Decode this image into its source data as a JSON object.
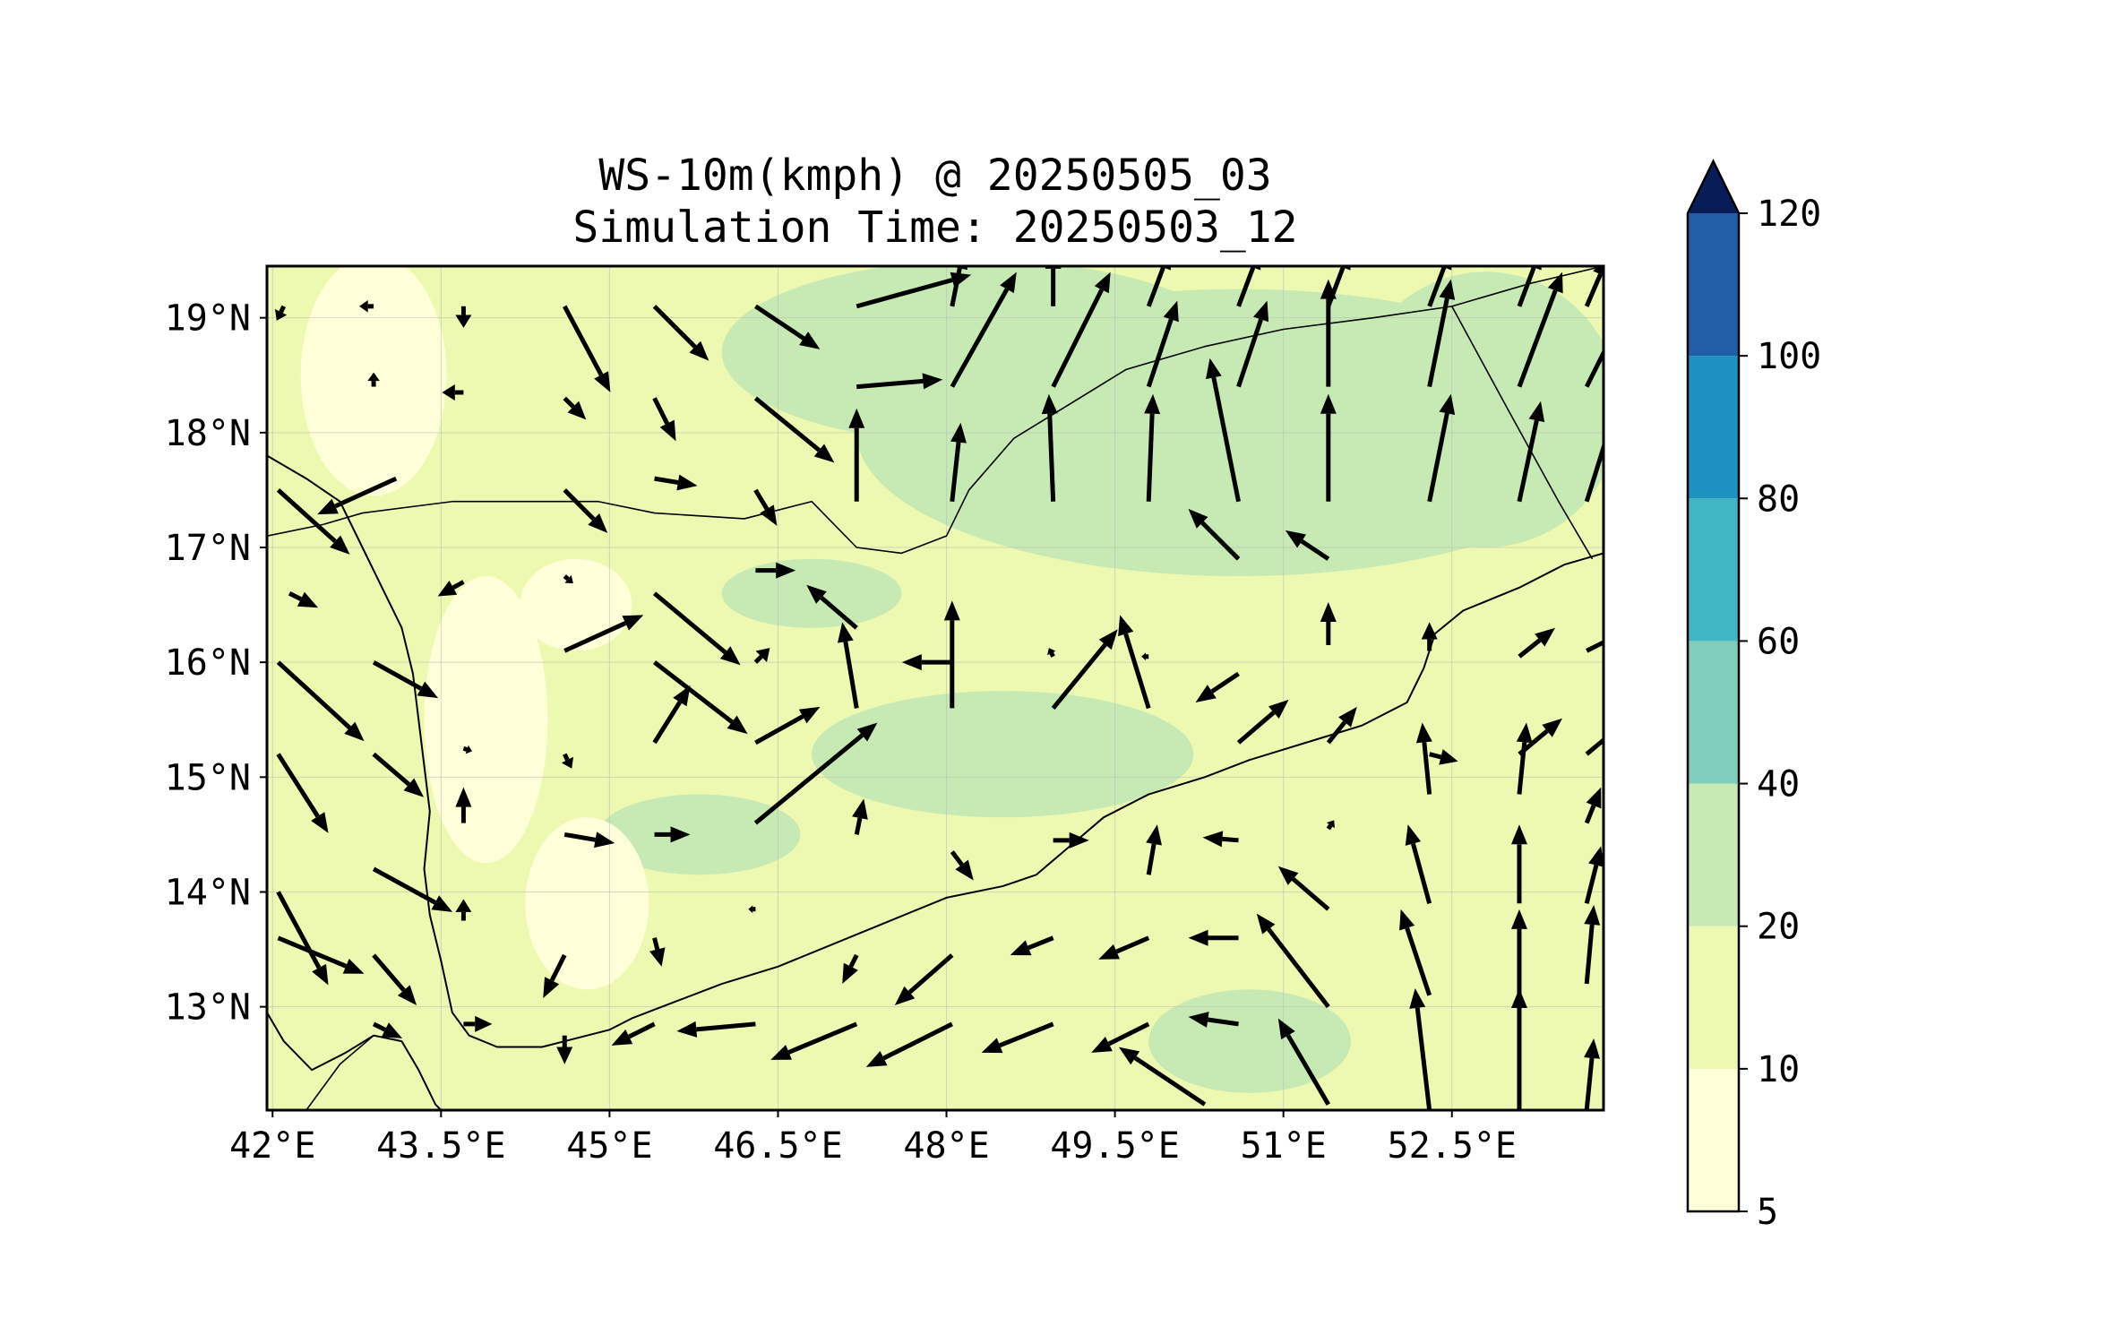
{
  "chart_data": {
    "type": "map",
    "title_line1": "WS-10m(kmph) @ 20250505_03",
    "title_line2": "Simulation Time: 20250503_12",
    "lon_range": [
      41.95,
      53.85
    ],
    "lat_range": [
      12.1,
      19.45
    ],
    "lon_ticks": [
      {
        "value": 42.0,
        "label": "42°E"
      },
      {
        "value": 43.5,
        "label": "43.5°E"
      },
      {
        "value": 45.0,
        "label": "45°E"
      },
      {
        "value": 46.5,
        "label": "46.5°E"
      },
      {
        "value": 48.0,
        "label": "48°E"
      },
      {
        "value": 49.5,
        "label": "49.5°E"
      },
      {
        "value": 51.0,
        "label": "51°E"
      },
      {
        "value": 52.5,
        "label": "52.5°E"
      }
    ],
    "lat_ticks": [
      {
        "value": 19,
        "label": "19°N"
      },
      {
        "value": 18,
        "label": "18°N"
      },
      {
        "value": 17,
        "label": "17°N"
      },
      {
        "value": 16,
        "label": "16°N"
      },
      {
        "value": 15,
        "label": "15°N"
      },
      {
        "value": 14,
        "label": "14°N"
      },
      {
        "value": 13,
        "label": "13°N"
      }
    ],
    "colorbar": {
      "levels": [
        5,
        10,
        20,
        40,
        60,
        80,
        100,
        120
      ],
      "labels": [
        "5",
        "10",
        "20",
        "40",
        "60",
        "80",
        "100",
        "120"
      ],
      "colors": [
        "#ffffd9",
        "#edf8b1",
        "#c7e9b4",
        "#7fcdbb",
        "#41b6c4",
        "#1d91c0",
        "#225ea8",
        "#253494"
      ],
      "extend_color": "#081d58",
      "extend": "max"
    },
    "color_field_blobs": [
      {
        "level": 20,
        "lon": 50.6,
        "lat": 18.0,
        "rx": 3.4,
        "ry": 1.25
      },
      {
        "level": 20,
        "lon": 48.3,
        "lat": 18.7,
        "rx": 2.3,
        "ry": 0.8
      },
      {
        "level": 20,
        "lon": 52.8,
        "lat": 18.2,
        "rx": 1.2,
        "ry": 1.2
      },
      {
        "level": 20,
        "lon": 48.5,
        "lat": 15.2,
        "rx": 1.7,
        "ry": 0.55
      },
      {
        "level": 20,
        "lon": 50.7,
        "lat": 12.7,
        "rx": 0.9,
        "ry": 0.45
      },
      {
        "level": 20,
        "lon": 46.8,
        "lat": 16.6,
        "rx": 0.8,
        "ry": 0.3
      },
      {
        "level": 20,
        "lon": 45.8,
        "lat": 14.5,
        "rx": 0.9,
        "ry": 0.35
      },
      {
        "level": 5,
        "lon": 42.9,
        "lat": 18.5,
        "rx": 0.65,
        "ry": 1.05
      },
      {
        "level": 5,
        "lon": 43.9,
        "lat": 15.5,
        "rx": 0.55,
        "ry": 1.25
      },
      {
        "level": 5,
        "lon": 44.8,
        "lat": 13.9,
        "rx": 0.55,
        "ry": 0.75
      },
      {
        "level": 5,
        "lon": 44.7,
        "lat": 16.5,
        "rx": 0.5,
        "ry": 0.4
      }
    ],
    "wind_vectors": [
      {
        "lon": 42.1,
        "lat": 19.1,
        "u": -0.05,
        "v": -0.1
      },
      {
        "lon": 42.9,
        "lat": 19.1,
        "u": -0.1,
        "v": 0.0
      },
      {
        "lon": 43.7,
        "lat": 19.1,
        "u": 0.0,
        "v": -0.15
      },
      {
        "lon": 44.6,
        "lat": 19.1,
        "u": 0.32,
        "v": -0.6
      },
      {
        "lon": 45.4,
        "lat": 19.1,
        "u": 0.38,
        "v": -0.38
      },
      {
        "lon": 46.3,
        "lat": 19.1,
        "u": 0.45,
        "v": -0.3
      },
      {
        "lon": 47.2,
        "lat": 19.1,
        "u": 0.8,
        "v": 0.22
      },
      {
        "lon": 48.05,
        "lat": 19.1,
        "u": 0.08,
        "v": 0.4
      },
      {
        "lon": 48.95,
        "lat": 19.1,
        "u": 0.0,
        "v": 0.4
      },
      {
        "lon": 49.8,
        "lat": 19.1,
        "u": 0.15,
        "v": 0.4
      },
      {
        "lon": 50.6,
        "lat": 19.1,
        "u": 0.15,
        "v": 0.4
      },
      {
        "lon": 51.4,
        "lat": 19.1,
        "u": 0.15,
        "v": 0.4
      },
      {
        "lon": 52.3,
        "lat": 19.1,
        "u": 0.15,
        "v": 0.4
      },
      {
        "lon": 53.1,
        "lat": 19.1,
        "u": 0.15,
        "v": 0.4
      },
      {
        "lon": 53.7,
        "lat": 19.1,
        "u": 0.15,
        "v": 0.35
      },
      {
        "lon": 42.9,
        "lat": 18.4,
        "u": 0.0,
        "v": 0.1
      },
      {
        "lon": 43.7,
        "lat": 18.35,
        "u": -0.15,
        "v": 0.0
      },
      {
        "lon": 44.6,
        "lat": 18.3,
        "u": 0.15,
        "v": -0.15
      },
      {
        "lon": 45.4,
        "lat": 18.3,
        "u": 0.15,
        "v": -0.3
      },
      {
        "lon": 46.3,
        "lat": 18.3,
        "u": 0.55,
        "v": -0.45
      },
      {
        "lon": 47.2,
        "lat": 18.4,
        "u": 0.6,
        "v": 0.05
      },
      {
        "lon": 48.05,
        "lat": 18.4,
        "u": 0.45,
        "v": 0.8
      },
      {
        "lon": 48.95,
        "lat": 18.4,
        "u": 0.4,
        "v": 0.8
      },
      {
        "lon": 49.8,
        "lat": 18.4,
        "u": 0.2,
        "v": 0.6
      },
      {
        "lon": 50.6,
        "lat": 18.4,
        "u": 0.2,
        "v": 0.6
      },
      {
        "lon": 51.4,
        "lat": 18.4,
        "u": 0.0,
        "v": 0.75
      },
      {
        "lon": 52.3,
        "lat": 18.4,
        "u": 0.15,
        "v": 0.75
      },
      {
        "lon": 53.1,
        "lat": 18.4,
        "u": 0.3,
        "v": 0.8
      },
      {
        "lon": 53.7,
        "lat": 18.4,
        "u": 0.3,
        "v": 0.6
      },
      {
        "lon": 42.05,
        "lat": 17.5,
        "u": 0.5,
        "v": -0.45
      },
      {
        "lon": 43.1,
        "lat": 17.6,
        "u": -0.55,
        "v": -0.25
      },
      {
        "lon": 44.6,
        "lat": 17.5,
        "u": 0.3,
        "v": -0.3
      },
      {
        "lon": 45.4,
        "lat": 17.6,
        "u": 0.3,
        "v": -0.05
      },
      {
        "lon": 46.3,
        "lat": 17.5,
        "u": 0.15,
        "v": -0.25
      },
      {
        "lon": 47.2,
        "lat": 17.4,
        "u": 0.0,
        "v": 0.65
      },
      {
        "lon": 48.05,
        "lat": 17.4,
        "u": 0.06,
        "v": 0.55
      },
      {
        "lon": 48.95,
        "lat": 17.4,
        "u": -0.03,
        "v": 0.75
      },
      {
        "lon": 49.8,
        "lat": 17.4,
        "u": 0.03,
        "v": 0.75
      },
      {
        "lon": 50.6,
        "lat": 17.4,
        "u": -0.2,
        "v": 1.0
      },
      {
        "lon": 51.4,
        "lat": 17.4,
        "u": 0.0,
        "v": 0.75
      },
      {
        "lon": 52.3,
        "lat": 17.4,
        "u": 0.15,
        "v": 0.75
      },
      {
        "lon": 53.1,
        "lat": 17.4,
        "u": 0.15,
        "v": 0.7
      },
      {
        "lon": 53.7,
        "lat": 17.4,
        "u": 0.25,
        "v": 0.8
      },
      {
        "lon": 42.15,
        "lat": 16.6,
        "u": 0.2,
        "v": -0.1
      },
      {
        "lon": 43.7,
        "lat": 16.7,
        "u": -0.18,
        "v": -0.1
      },
      {
        "lon": 44.6,
        "lat": 16.75,
        "u": 0.06,
        "v": -0.05
      },
      {
        "lon": 45.4,
        "lat": 16.6,
        "u": 0.6,
        "v": -0.5
      },
      {
        "lon": 46.3,
        "lat": 16.8,
        "u": 0.28,
        "v": 0.0
      },
      {
        "lon": 50.6,
        "lat": 16.9,
        "u": -0.35,
        "v": 0.35
      },
      {
        "lon": 51.4,
        "lat": 16.9,
        "u": -0.3,
        "v": 0.2
      },
      {
        "lon": 42.05,
        "lat": 16.0,
        "u": 0.6,
        "v": -0.55
      },
      {
        "lon": 42.9,
        "lat": 16.0,
        "u": 0.45,
        "v": -0.25
      },
      {
        "lon": 44.6,
        "lat": 16.1,
        "u": 0.55,
        "v": 0.25
      },
      {
        "lon": 45.4,
        "lat": 16.0,
        "u": 0.65,
        "v": -0.5
      },
      {
        "lon": 46.3,
        "lat": 16.0,
        "u": 0.1,
        "v": 0.1
      },
      {
        "lon": 47.2,
        "lat": 16.3,
        "u": -0.35,
        "v": 0.3
      },
      {
        "lon": 48.05,
        "lat": 16.0,
        "u": -0.35,
        "v": 0.0
      },
      {
        "lon": 48.95,
        "lat": 16.05,
        "u": -0.03,
        "v": 0.06
      },
      {
        "lon": 49.8,
        "lat": 16.05,
        "u": -0.05,
        "v": 0.0
      },
      {
        "lon": 50.6,
        "lat": 15.9,
        "u": -0.3,
        "v": -0.2
      },
      {
        "lon": 51.4,
        "lat": 16.15,
        "u": 0.0,
        "v": 0.3
      },
      {
        "lon": 52.3,
        "lat": 16.1,
        "u": 0.0,
        "v": 0.2
      },
      {
        "lon": 53.1,
        "lat": 16.05,
        "u": 0.25,
        "v": 0.2
      },
      {
        "lon": 53.7,
        "lat": 16.1,
        "u": 0.3,
        "v": 0.15
      },
      {
        "lon": 42.05,
        "lat": 15.2,
        "u": 0.35,
        "v": -0.55
      },
      {
        "lon": 42.9,
        "lat": 15.2,
        "u": 0.35,
        "v": -0.3
      },
      {
        "lon": 43.7,
        "lat": 15.25,
        "u": 0.06,
        "v": -0.02
      },
      {
        "lon": 44.6,
        "lat": 15.2,
        "u": 0.05,
        "v": -0.1
      },
      {
        "lon": 45.4,
        "lat": 15.3,
        "u": 0.25,
        "v": 0.4
      },
      {
        "lon": 46.3,
        "lat": 15.3,
        "u": 0.45,
        "v": 0.25
      },
      {
        "lon": 47.2,
        "lat": 15.6,
        "u": -0.1,
        "v": 0.6
      },
      {
        "lon": 48.05,
        "lat": 15.6,
        "u": 0.0,
        "v": 0.75
      },
      {
        "lon": 48.95,
        "lat": 15.6,
        "u": 0.45,
        "v": 0.55
      },
      {
        "lon": 49.8,
        "lat": 15.6,
        "u": -0.2,
        "v": 0.65
      },
      {
        "lon": 50.6,
        "lat": 15.3,
        "u": 0.35,
        "v": 0.3
      },
      {
        "lon": 51.4,
        "lat": 15.3,
        "u": 0.2,
        "v": 0.25
      },
      {
        "lon": 52.3,
        "lat": 15.2,
        "u": 0.2,
        "v": -0.05
      },
      {
        "lon": 53.1,
        "lat": 15.2,
        "u": 0.3,
        "v": 0.25
      },
      {
        "lon": 53.7,
        "lat": 15.2,
        "u": 0.3,
        "v": 0.25
      },
      {
        "lon": 42.05,
        "lat": 14.0,
        "u": 0.35,
        "v": -0.65
      },
      {
        "lon": 42.05,
        "lat": 13.6,
        "u": 0.6,
        "v": -0.25
      },
      {
        "lon": 42.9,
        "lat": 14.2,
        "u": 0.55,
        "v": -0.3
      },
      {
        "lon": 43.7,
        "lat": 14.6,
        "u": 0.0,
        "v": 0.25
      },
      {
        "lon": 44.6,
        "lat": 14.5,
        "u": 0.35,
        "v": -0.06
      },
      {
        "lon": 45.4,
        "lat": 14.5,
        "u": 0.25,
        "v": 0.0
      },
      {
        "lon": 46.3,
        "lat": 14.6,
        "u": 0.85,
        "v": 0.7
      },
      {
        "lon": 47.2,
        "lat": 14.5,
        "u": 0.05,
        "v": 0.25
      },
      {
        "lon": 48.05,
        "lat": 14.35,
        "u": 0.15,
        "v": -0.2
      },
      {
        "lon": 48.95,
        "lat": 14.45,
        "u": 0.25,
        "v": 0.0
      },
      {
        "lon": 49.8,
        "lat": 14.15,
        "u": 0.06,
        "v": 0.35
      },
      {
        "lon": 50.6,
        "lat": 14.45,
        "u": -0.25,
        "v": 0.02
      },
      {
        "lon": 51.4,
        "lat": 14.55,
        "u": 0.04,
        "v": 0.06
      },
      {
        "lon": 52.3,
        "lat": 14.85,
        "u": -0.05,
        "v": 0.5
      },
      {
        "lon": 53.1,
        "lat": 14.85,
        "u": 0.05,
        "v": 0.5
      },
      {
        "lon": 53.7,
        "lat": 14.6,
        "u": 0.1,
        "v": 0.25
      },
      {
        "lon": 42.9,
        "lat": 13.45,
        "u": 0.3,
        "v": -0.35
      },
      {
        "lon": 43.7,
        "lat": 13.75,
        "u": 0.0,
        "v": 0.15
      },
      {
        "lon": 44.6,
        "lat": 13.45,
        "u": -0.15,
        "v": -0.3
      },
      {
        "lon": 45.4,
        "lat": 13.6,
        "u": 0.05,
        "v": -0.2
      },
      {
        "lon": 46.3,
        "lat": 13.85,
        "u": -0.05,
        "v": 0.0
      },
      {
        "lon": 47.2,
        "lat": 13.45,
        "u": -0.1,
        "v": -0.2
      },
      {
        "lon": 48.05,
        "lat": 13.45,
        "u": -0.4,
        "v": -0.35
      },
      {
        "lon": 48.95,
        "lat": 13.6,
        "u": -0.3,
        "v": -0.12
      },
      {
        "lon": 49.8,
        "lat": 13.6,
        "u": -0.35,
        "v": -0.15
      },
      {
        "lon": 50.6,
        "lat": 13.6,
        "u": -0.35,
        "v": 0.0
      },
      {
        "lon": 51.4,
        "lat": 13.85,
        "u": -0.35,
        "v": 0.3
      },
      {
        "lon": 52.3,
        "lat": 13.9,
        "u": -0.15,
        "v": 0.55
      },
      {
        "lon": 53.1,
        "lat": 13.9,
        "u": 0.0,
        "v": 0.55
      },
      {
        "lon": 53.7,
        "lat": 13.9,
        "u": 0.1,
        "v": 0.4
      },
      {
        "lon": 42.9,
        "lat": 12.85,
        "u": 0.2,
        "v": -0.1
      },
      {
        "lon": 43.7,
        "lat": 12.85,
        "u": 0.2,
        "v": 0.0
      },
      {
        "lon": 44.6,
        "lat": 12.75,
        "u": 0.0,
        "v": -0.2
      },
      {
        "lon": 45.4,
        "lat": 12.85,
        "u": -0.3,
        "v": -0.15
      },
      {
        "lon": 46.3,
        "lat": 12.85,
        "u": -0.55,
        "v": -0.05
      },
      {
        "lon": 47.2,
        "lat": 12.85,
        "u": -0.6,
        "v": -0.25
      },
      {
        "lon": 48.05,
        "lat": 12.85,
        "u": -0.6,
        "v": -0.3
      },
      {
        "lon": 48.95,
        "lat": 12.85,
        "u": -0.5,
        "v": -0.2
      },
      {
        "lon": 49.8,
        "lat": 12.85,
        "u": -0.4,
        "v": -0.2
      },
      {
        "lon": 50.6,
        "lat": 12.85,
        "u": -0.35,
        "v": 0.05
      },
      {
        "lon": 51.4,
        "lat": 13.0,
        "u": -0.5,
        "v": 0.65
      },
      {
        "lon": 52.3,
        "lat": 13.1,
        "u": -0.2,
        "v": 0.6
      },
      {
        "lon": 53.1,
        "lat": 13.1,
        "u": 0.0,
        "v": 0.6
      },
      {
        "lon": 53.7,
        "lat": 13.2,
        "u": 0.05,
        "v": 0.55
      },
      {
        "lon": 50.3,
        "lat": 12.15,
        "u": -0.6,
        "v": 0.4
      },
      {
        "lon": 51.4,
        "lat": 12.15,
        "u": -0.35,
        "v": 0.6
      },
      {
        "lon": 52.3,
        "lat": 12.1,
        "u": -0.1,
        "v": 0.85
      },
      {
        "lon": 53.1,
        "lat": 12.1,
        "u": 0.0,
        "v": 0.85
      },
      {
        "lon": 53.7,
        "lat": 12.1,
        "u": 0.05,
        "v": 0.5
      }
    ],
    "coastline": [
      [
        41.95,
        17.8
      ],
      [
        42.3,
        17.6
      ],
      [
        42.6,
        17.4
      ],
      [
        42.8,
        17.0
      ],
      [
        43.0,
        16.6
      ],
      [
        43.15,
        16.3
      ],
      [
        43.25,
        15.9
      ],
      [
        43.3,
        15.5
      ],
      [
        43.35,
        15.1
      ],
      [
        43.4,
        14.7
      ],
      [
        43.35,
        14.2
      ],
      [
        43.4,
        13.8
      ],
      [
        43.5,
        13.4
      ],
      [
        43.6,
        12.95
      ],
      [
        43.75,
        12.75
      ],
      [
        44.0,
        12.65
      ],
      [
        44.4,
        12.65
      ],
      [
        44.8,
        12.75
      ],
      [
        45.0,
        12.8
      ],
      [
        45.2,
        12.9
      ],
      [
        45.6,
        13.05
      ],
      [
        46.0,
        13.2
      ],
      [
        46.5,
        13.35
      ],
      [
        47.0,
        13.55
      ],
      [
        47.5,
        13.75
      ],
      [
        48.0,
        13.95
      ],
      [
        48.5,
        14.05
      ],
      [
        48.8,
        14.15
      ],
      [
        49.1,
        14.4
      ],
      [
        49.4,
        14.65
      ],
      [
        49.8,
        14.85
      ],
      [
        50.3,
        15.0
      ],
      [
        50.7,
        15.15
      ],
      [
        51.2,
        15.3
      ],
      [
        51.7,
        15.45
      ],
      [
        52.1,
        15.65
      ],
      [
        52.25,
        15.95
      ],
      [
        52.35,
        16.25
      ],
      [
        52.6,
        16.45
      ],
      [
        53.1,
        16.65
      ],
      [
        53.5,
        16.85
      ],
      [
        53.85,
        16.95
      ]
    ],
    "border_saudi_yemen": [
      [
        41.95,
        17.1
      ],
      [
        42.45,
        17.2
      ],
      [
        42.8,
        17.3
      ],
      [
        43.2,
        17.35
      ],
      [
        43.6,
        17.4
      ],
      [
        44.2,
        17.4
      ],
      [
        44.9,
        17.4
      ],
      [
        45.4,
        17.3
      ],
      [
        46.2,
        17.25
      ],
      [
        46.8,
        17.4
      ],
      [
        47.2,
        17.0
      ],
      [
        47.6,
        16.95
      ],
      [
        48.0,
        17.1
      ],
      [
        48.2,
        17.5
      ],
      [
        48.6,
        17.95
      ],
      [
        49.1,
        18.25
      ],
      [
        49.6,
        18.55
      ],
      [
        50.3,
        18.75
      ],
      [
        51.0,
        18.9
      ],
      [
        51.8,
        19.0
      ],
      [
        52.5,
        19.1
      ],
      [
        53.2,
        19.3
      ],
      [
        53.85,
        19.45
      ]
    ],
    "border_yemen_oman": [
      [
        52.5,
        19.1
      ],
      [
        53.0,
        18.2
      ],
      [
        53.45,
        17.4
      ],
      [
        53.75,
        16.9
      ]
    ],
    "africa_coast": [
      [
        41.95,
        12.95
      ],
      [
        42.1,
        12.7
      ],
      [
        42.35,
        12.45
      ],
      [
        42.65,
        12.6
      ],
      [
        42.9,
        12.75
      ],
      [
        43.15,
        12.7
      ],
      [
        43.3,
        12.45
      ],
      [
        43.45,
        12.15
      ],
      [
        43.5,
        12.1
      ]
    ],
    "africa_inland": [
      [
        42.3,
        12.1
      ],
      [
        42.6,
        12.5
      ],
      [
        42.9,
        12.75
      ]
    ]
  }
}
